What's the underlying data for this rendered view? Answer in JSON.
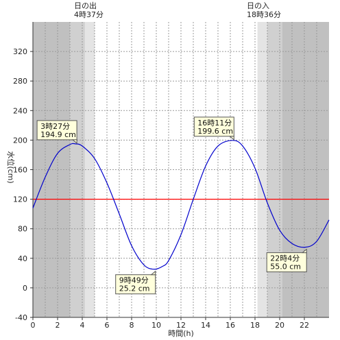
{
  "chart_data": {
    "type": "line",
    "xlabel": "時間(h)",
    "ylabel": "水位(cm)",
    "xlim": [
      0,
      24
    ],
    "ylim": [
      -40,
      360
    ],
    "x_ticks": [
      0,
      2,
      4,
      6,
      8,
      10,
      12,
      14,
      16,
      18,
      20,
      22
    ],
    "y_ticks": [
      -40,
      0,
      40,
      80,
      120,
      160,
      200,
      240,
      280,
      320
    ],
    "reference_line": {
      "y": 120,
      "color": "#ff0000"
    },
    "sunrise": {
      "time": 4.617,
      "label_line1": "日の出",
      "label_line2": "4時37分"
    },
    "sunset": {
      "time": 18.6,
      "label_line1": "日の入",
      "label_line2": "18時36分"
    },
    "series": [
      {
        "color": "#0000cc",
        "x": [
          0,
          1,
          2,
          3,
          3.45,
          4,
          5,
          6,
          7,
          8,
          9,
          9.817,
          10.5,
          11,
          12,
          13,
          14,
          15,
          16.183,
          17,
          18,
          19,
          20,
          21,
          22.067,
          23,
          24
        ],
        "values": [
          108,
          150,
          182,
          194,
          194.9,
          192,
          175,
          142,
          100,
          57,
          31,
          25.2,
          29,
          37,
          72,
          120,
          165,
          192,
          199.6,
          192,
          162,
          115,
          78,
          60,
          55.0,
          63,
          92
        ]
      }
    ],
    "extremes": [
      {
        "x": 3.45,
        "y": 194.9,
        "time_label": "3時27分",
        "level_label": "194.9 cm",
        "placement": "above-left"
      },
      {
        "x": 9.817,
        "y": 25.2,
        "time_label": "9時49分",
        "level_label": "25.2 cm",
        "placement": "below-left"
      },
      {
        "x": 16.183,
        "y": 199.6,
        "time_label": "16時11分",
        "level_label": "199.6 cm",
        "placement": "above-left"
      },
      {
        "x": 22.067,
        "y": 55.0,
        "time_label": "22時4分",
        "level_label": "55.0 cm",
        "placement": "below-left"
      }
    ],
    "grid": true
  },
  "colors": {
    "night": "#c0c0c0",
    "twilight_dark": "#d0d0d0",
    "twilight_light": "#e4e4e4",
    "day": "#ffffff",
    "grid": "#999999"
  }
}
